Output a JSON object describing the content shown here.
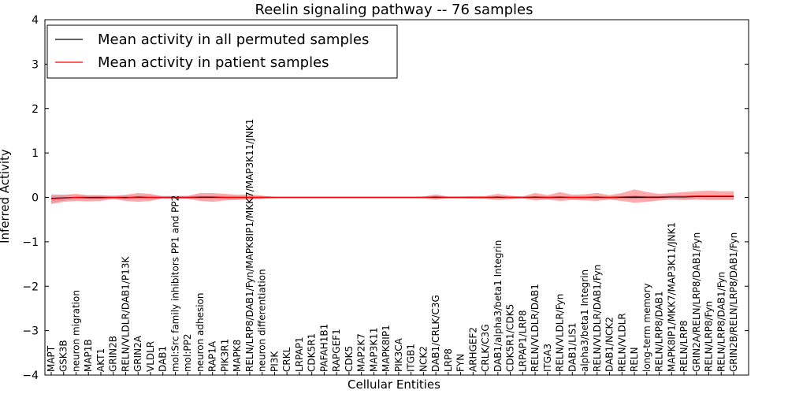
{
  "chart_data": {
    "type": "line",
    "title": "Reelin signaling pathway -- 76 samples",
    "xlabel": "Cellular Entities",
    "ylabel": "Inferred Activity",
    "ylim": [
      -4,
      4
    ],
    "yticks": [
      4,
      3,
      2,
      1,
      0,
      -1,
      -2,
      -3,
      -4
    ],
    "legend_position": "top-left",
    "categories": [
      "MAPT",
      "GSK3B",
      "neuron migration",
      "MAP1B",
      "AKT1",
      "GRIN2B",
      "RELN/VLDLR/DAB1/P13K",
      "GRIN2A",
      "VLDLR",
      "DAB1",
      "mol:Src family inhibitors PP1 and PP2",
      "mol:PP2",
      "neuron adhesion",
      "RAP1A",
      "PIK3R1",
      "MAPK8",
      "RELN/LRP8/DAB1/Fyn/MAPK8IP1/MKK7/MAP3K11/JNK1",
      "neuron differentiation",
      "PI3K",
      "CRKL",
      "LRPAP1",
      "CDK5R1",
      "PAFAH1B1",
      "RAPGEF1",
      "CDK5",
      "MAP2K7",
      "MAP3K11",
      "MAPK8IP1",
      "PIK3CA",
      "ITGB1",
      "NCK2",
      "DAB1/CRLK/C3G",
      "LRP8",
      "FYN",
      "ARHGEF2",
      "CRLK/C3G",
      "DAB1/alpha3/beta1 Integrin",
      "CDK5R1/CDK5",
      "LRPAP1/LRP8",
      "RELN/VLDLR/DAB1",
      "ITGA3",
      "RELN/VLDLR/Fyn",
      "DAB1/LIS1",
      "alpha3/beta1 Integrin",
      "RELN/VLDLR/DAB1/Fyn",
      "DAB1/NCK2",
      "RELN/VLDLR",
      "RELN",
      "long-term memory",
      "RELN/LRP8/DAB1",
      "MAPK8IP1/MKK7/MAP3K11/JNK1",
      "RELN/LRP8",
      "GRIN2A/RELN/LRP8/DAB1/Fyn",
      "RELN/LRP8/Fyn",
      "RELN/LRP8/DAB1/Fyn",
      "GRIN2B/RELN/LRP8/DAB1/Fyn"
    ],
    "series": [
      {
        "name": "Mean activity in all permuted samples",
        "color": "#000000",
        "values": [
          -0.02,
          -0.01,
          0,
          0,
          0,
          0,
          0,
          0,
          0,
          0,
          0,
          0,
          0,
          0,
          0,
          0,
          0,
          0,
          0,
          0,
          0,
          0,
          0,
          0,
          0,
          0,
          0,
          0,
          0,
          0,
          0,
          0,
          0,
          0,
          0,
          0,
          0,
          0,
          0,
          0,
          0,
          0,
          0,
          0,
          0,
          0,
          0,
          0,
          0,
          0,
          0.01,
          0.01,
          0.02,
          0.02,
          0.02,
          0.02
        ],
        "band_upper": [
          0.08,
          0.06,
          0.05,
          0.05,
          0.05,
          0.05,
          0.05,
          0.05,
          0.05,
          0.04,
          0.04,
          0.04,
          0.04,
          0.04,
          0.04,
          0.03,
          0.03,
          0.03,
          0.02,
          0.02,
          0.02,
          0.02,
          0.02,
          0.02,
          0.02,
          0.02,
          0.02,
          0.02,
          0.02,
          0.02,
          0.02,
          0.02,
          0.02,
          0.02,
          0.02,
          0.02,
          0.02,
          0.02,
          0.02,
          0.03,
          0.03,
          0.03,
          0.03,
          0.03,
          0.03,
          0.03,
          0.03,
          0.04,
          0.04,
          0.04,
          0.05,
          0.05,
          0.05,
          0.05,
          0.05,
          0.05
        ],
        "band_lower": [
          -0.12,
          -0.08,
          -0.05,
          -0.05,
          -0.05,
          -0.05,
          -0.05,
          -0.05,
          -0.05,
          -0.04,
          -0.04,
          -0.04,
          -0.04,
          -0.04,
          -0.04,
          -0.03,
          -0.03,
          -0.03,
          -0.02,
          -0.02,
          -0.02,
          -0.02,
          -0.02,
          -0.02,
          -0.02,
          -0.02,
          -0.02,
          -0.02,
          -0.02,
          -0.02,
          -0.02,
          -0.02,
          -0.02,
          -0.02,
          -0.02,
          -0.02,
          -0.02,
          -0.02,
          -0.02,
          -0.03,
          -0.03,
          -0.03,
          -0.03,
          -0.03,
          -0.03,
          -0.03,
          -0.03,
          -0.04,
          -0.04,
          -0.04,
          -0.03,
          -0.03,
          -0.03,
          -0.03,
          -0.03,
          -0.03
        ]
      },
      {
        "name": "Mean activity in patient samples",
        "color": "#ff0000",
        "values": [
          -0.03,
          -0.02,
          0,
          -0.01,
          -0.01,
          0,
          -0.01,
          0.01,
          0,
          0,
          0,
          0,
          0.01,
          0.01,
          0,
          0,
          0,
          0,
          0,
          0,
          0,
          0,
          0,
          0,
          0,
          0,
          0,
          0,
          0,
          0,
          0,
          0.01,
          0,
          0,
          0,
          0,
          0.01,
          0,
          0,
          0.01,
          0,
          0.01,
          0,
          0,
          0.01,
          0,
          0.01,
          0.02,
          0.01,
          0.01,
          0.02,
          0.02,
          0.03,
          0.03,
          0.03,
          0.03
        ],
        "band_upper": [
          0.05,
          0.06,
          0.08,
          0.05,
          0.05,
          0.03,
          0.06,
          0.1,
          0.08,
          0.02,
          0.03,
          0.03,
          0.1,
          0.1,
          0.08,
          0.06,
          0.07,
          0.04,
          0.01,
          0.01,
          0.01,
          0.01,
          0.01,
          0.01,
          0.01,
          0.01,
          0.01,
          0.01,
          0.01,
          0.01,
          0.02,
          0.07,
          0.02,
          0.02,
          0.03,
          0.03,
          0.08,
          0.04,
          0.02,
          0.1,
          0.05,
          0.12,
          0.06,
          0.07,
          0.1,
          0.05,
          0.1,
          0.18,
          0.12,
          0.08,
          0.1,
          0.12,
          0.14,
          0.15,
          0.14,
          0.14
        ],
        "band_lower": [
          -0.15,
          -0.1,
          -0.08,
          -0.09,
          -0.08,
          -0.03,
          -0.08,
          -0.1,
          -0.08,
          -0.02,
          -0.03,
          -0.03,
          -0.08,
          -0.1,
          -0.07,
          -0.06,
          -0.05,
          -0.03,
          -0.01,
          -0.01,
          -0.01,
          -0.01,
          -0.01,
          -0.01,
          -0.01,
          -0.01,
          -0.01,
          -0.01,
          -0.01,
          -0.01,
          -0.02,
          -0.05,
          -0.02,
          -0.02,
          -0.03,
          -0.03,
          -0.06,
          -0.04,
          -0.02,
          -0.07,
          -0.05,
          -0.08,
          -0.06,
          -0.07,
          -0.08,
          -0.05,
          -0.08,
          -0.12,
          -0.1,
          -0.07,
          -0.05,
          -0.06,
          -0.05,
          -0.06,
          -0.06,
          -0.06
        ]
      }
    ]
  }
}
